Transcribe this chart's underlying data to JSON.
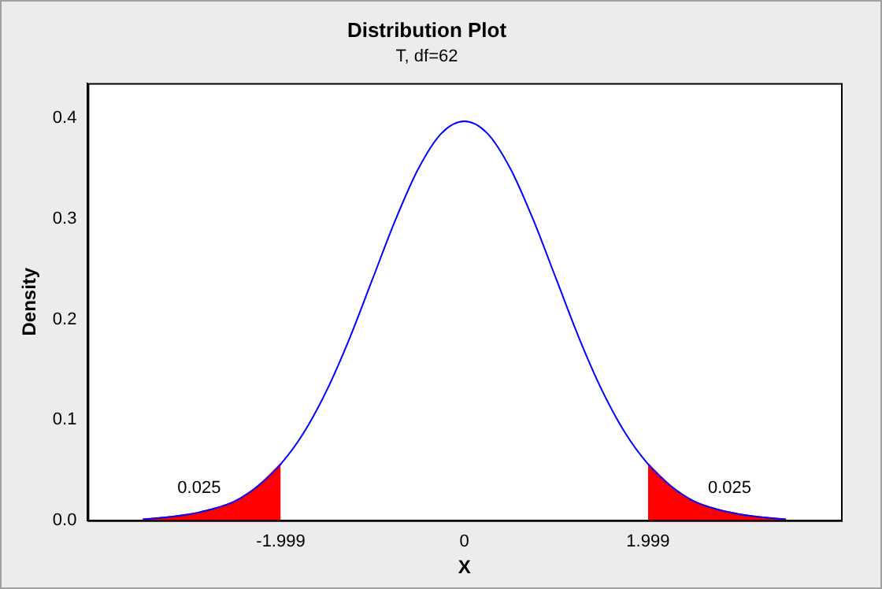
{
  "chart_data": {
    "type": "line",
    "title": "Distribution Plot",
    "subtitle": "T, df=62",
    "xlabel": "X",
    "ylabel": "Density",
    "xlim": [
      -4.1,
      4.1
    ],
    "ylim": [
      0,
      0.435
    ],
    "xticks": [
      -1.999,
      0,
      1.999
    ],
    "yticks": [
      {
        "value": 0,
        "label": "0.0"
      },
      {
        "value": 0.1,
        "label": "0.1"
      },
      {
        "value": 0.2,
        "label": "0.2"
      },
      {
        "value": 0.3,
        "label": "0.3"
      },
      {
        "value": 0.4,
        "label": "0.4"
      }
    ],
    "series": [
      {
        "type": "area",
        "color": "#ff0000",
        "x": [
          -3.5,
          -3.25,
          -3,
          -2.75,
          -2.5,
          -2.25,
          -1.999
        ],
        "values": [
          0.001,
          0.003,
          0.006,
          0.011,
          0.019,
          0.034,
          0.056
        ]
      },
      {
        "type": "area",
        "color": "#ff0000",
        "x": [
          1.999,
          2.25,
          2.5,
          2.75,
          3,
          3.25,
          3.5
        ],
        "values": [
          0.056,
          0.034,
          0.019,
          0.011,
          0.006,
          0.003,
          0.001
        ]
      },
      {
        "color": "#0000ff",
        "x": [
          -3.5,
          -3.25,
          -3,
          -2.75,
          -2.5,
          -2.25,
          -1.999,
          -1.75,
          -1.5,
          -1.25,
          -1,
          -0.75,
          -0.5,
          -0.25,
          0,
          0.25,
          0.5,
          0.75,
          1,
          1.25,
          1.5,
          1.75,
          1.999,
          2.25,
          2.5,
          2.75,
          3,
          3.25,
          3.5
        ],
        "values": [
          0.001,
          0.003,
          0.006,
          0.011,
          0.019,
          0.034,
          0.056,
          0.087,
          0.129,
          0.181,
          0.24,
          0.299,
          0.35,
          0.385,
          0.397,
          0.385,
          0.35,
          0.299,
          0.24,
          0.181,
          0.129,
          0.087,
          0.056,
          0.034,
          0.019,
          0.011,
          0.006,
          0.003,
          0.001
        ]
      }
    ],
    "annotations": [
      "0.025",
      "0.025"
    ]
  }
}
